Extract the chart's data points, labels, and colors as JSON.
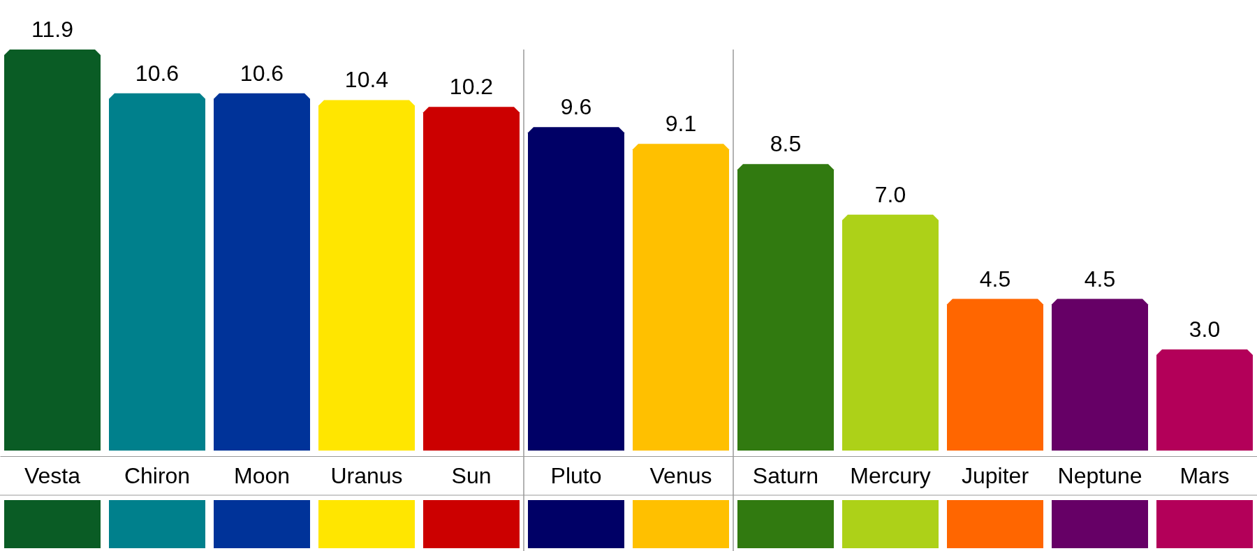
{
  "chart_data": {
    "type": "bar",
    "categories": [
      "Vesta",
      "Chiron",
      "Moon",
      "Uranus",
      "Sun",
      "Pluto",
      "Venus",
      "Saturn",
      "Mercury",
      "Jupiter",
      "Neptune",
      "Mars"
    ],
    "values": [
      11.9,
      10.6,
      10.6,
      10.4,
      10.2,
      9.6,
      9.1,
      8.5,
      7.0,
      4.5,
      4.5,
      3.0
    ],
    "colors": [
      "#0a5c25",
      "#00808c",
      "#003399",
      "#ffe600",
      "#cc0000",
      "#000066",
      "#ffc000",
      "#317a10",
      "#add118",
      "#ff6600",
      "#660066",
      "#b30059"
    ],
    "value_labels": [
      "11.9",
      "10.6",
      "10.6",
      "10.4",
      "10.2",
      "9.6",
      "9.1",
      "8.5",
      "7.0",
      "4.5",
      "4.5",
      "3.0"
    ],
    "grid": false
  }
}
